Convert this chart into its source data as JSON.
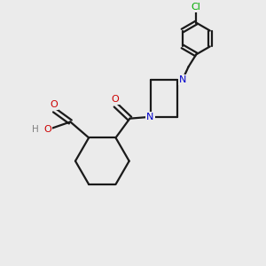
{
  "background_color": "#ebebeb",
  "bond_color": "#1a1a1a",
  "bond_width": 1.6,
  "atom_colors": {
    "N": "#0000cc",
    "O": "#cc0000",
    "Cl": "#00aa00",
    "H": "#808080"
  },
  "figsize": [
    3.0,
    3.0
  ],
  "dpi": 100
}
